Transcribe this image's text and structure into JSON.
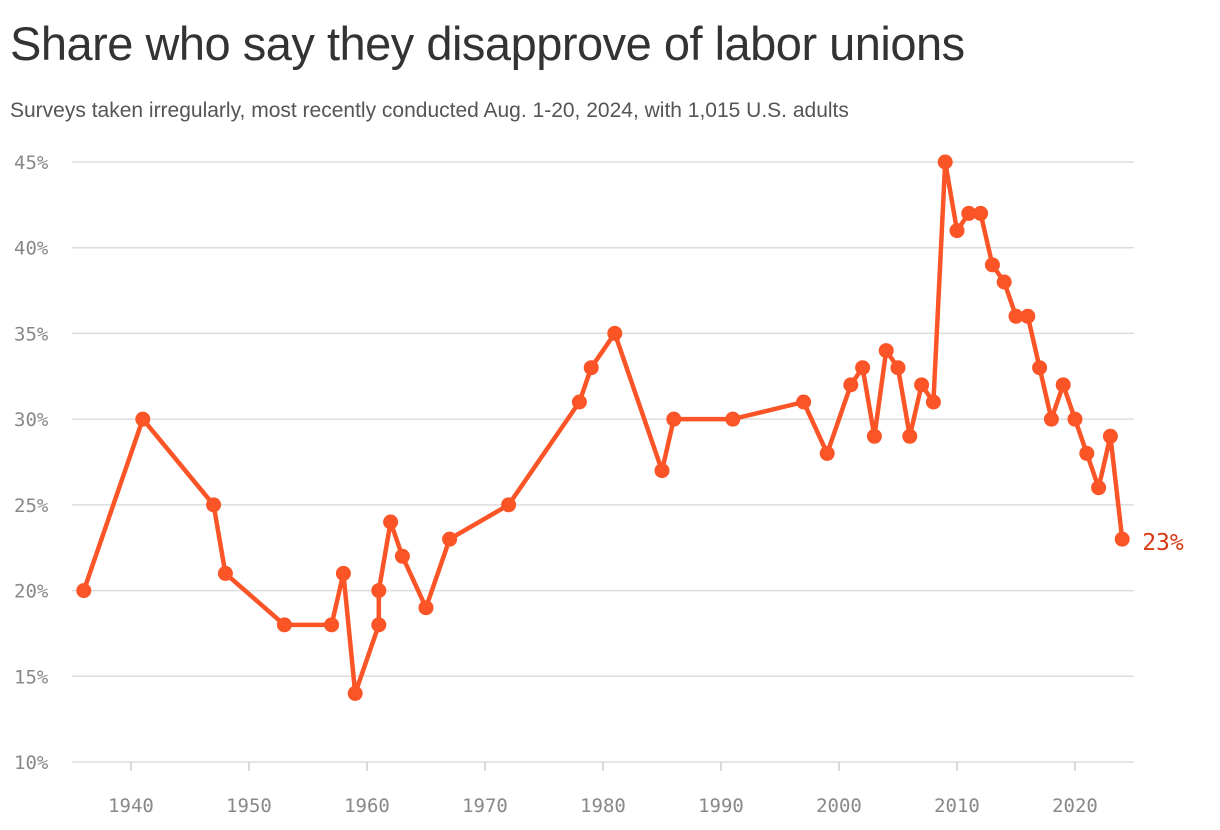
{
  "chart_data": {
    "type": "line",
    "title": "Share who say they disapprove of labor unions",
    "subtitle": "Surveys taken irregularly, most recently conducted Aug. 1-20, 2024, with 1,015 U.S. adults",
    "xlabel": "",
    "ylabel": "",
    "xlim": [
      1935,
      2025
    ],
    "ylim": [
      10,
      45
    ],
    "x_ticks": [
      1940,
      1950,
      1960,
      1970,
      1980,
      1990,
      2000,
      2010,
      2020
    ],
    "y_ticks": [
      10,
      15,
      20,
      25,
      30,
      35,
      40,
      45
    ],
    "y_tick_labels": [
      "10%",
      "15%",
      "20%",
      "25%",
      "30%",
      "35%",
      "40%",
      "45%"
    ],
    "grid": true,
    "end_label": "23%",
    "series": [
      {
        "color": "#fb5426",
        "points": [
          [
            1936,
            20
          ],
          [
            1941,
            30
          ],
          [
            1947,
            25
          ],
          [
            1948,
            21
          ],
          [
            1953,
            18
          ],
          [
            1957,
            18
          ],
          [
            1958,
            21
          ],
          [
            1959,
            14
          ],
          [
            1961,
            18
          ],
          [
            1961,
            20
          ],
          [
            1962,
            24
          ],
          [
            1963,
            22
          ],
          [
            1965,
            19
          ],
          [
            1967,
            23
          ],
          [
            1972,
            25
          ],
          [
            1978,
            31
          ],
          [
            1979,
            33
          ],
          [
            1981,
            35
          ],
          [
            1985,
            27
          ],
          [
            1986,
            30
          ],
          [
            1991,
            30
          ],
          [
            1997,
            31
          ],
          [
            1999,
            28
          ],
          [
            2001,
            32
          ],
          [
            2002,
            33
          ],
          [
            2003,
            29
          ],
          [
            2004,
            34
          ],
          [
            2005,
            33
          ],
          [
            2006,
            29
          ],
          [
            2007,
            32
          ],
          [
            2008,
            31
          ],
          [
            2009,
            45
          ],
          [
            2010,
            41
          ],
          [
            2011,
            42
          ],
          [
            2012,
            42
          ],
          [
            2013,
            39
          ],
          [
            2014,
            38
          ],
          [
            2015,
            36
          ],
          [
            2016,
            36
          ],
          [
            2017,
            33
          ],
          [
            2018,
            30
          ],
          [
            2019,
            32
          ],
          [
            2020,
            30
          ],
          [
            2021,
            28
          ],
          [
            2022,
            26
          ],
          [
            2023,
            29
          ],
          [
            2024,
            23
          ]
        ]
      }
    ]
  },
  "colors": {
    "line": "#fb5426",
    "end_label": "#d63a12",
    "grid": "#dddddd",
    "tick_text": "#888888"
  }
}
